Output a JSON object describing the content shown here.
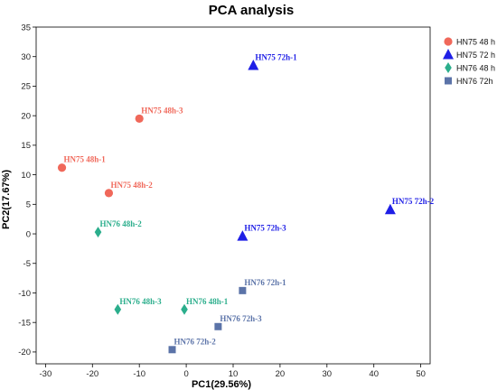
{
  "chart_data": {
    "type": "scatter",
    "title": "PCA analysis",
    "xlabel": "PC1(29.56%)",
    "ylabel": "PC2(17.67%)",
    "xlim": [
      -32,
      52
    ],
    "ylim": [
      -22,
      35
    ],
    "xticks": [
      -30,
      -20,
      -10,
      0,
      10,
      20,
      30,
      40,
      50
    ],
    "yticks": [
      -20,
      -15,
      -10,
      -5,
      0,
      5,
      10,
      15,
      20,
      25,
      30,
      35
    ],
    "grid": false,
    "legend_position": "top-right",
    "series": [
      {
        "name": "HN75 48 h",
        "color": "#F0685A",
        "marker": "circle",
        "points": [
          {
            "x": -26.5,
            "y": 11.2,
            "label": "HN75 48h-1"
          },
          {
            "x": -16.5,
            "y": 6.9,
            "label": "HN75 48h-2"
          },
          {
            "x": -10.0,
            "y": 19.5,
            "label": "HN75 48h-3"
          }
        ]
      },
      {
        "name": "HN75 72 h",
        "color": "#1F1FE6",
        "marker": "triangle",
        "points": [
          {
            "x": 14.3,
            "y": 28.5,
            "label": "HN75 72h-1"
          },
          {
            "x": 43.5,
            "y": 4.1,
            "label": "HN75 72h-2"
          },
          {
            "x": 12.0,
            "y": -0.4,
            "label": "HN75 72h-3"
          }
        ]
      },
      {
        "name": "HN76 48 h",
        "color": "#2BAE8C",
        "marker": "diamond",
        "points": [
          {
            "x": -0.4,
            "y": -12.8,
            "label": "HN76 48h-1"
          },
          {
            "x": -18.8,
            "y": 0.3,
            "label": "HN76 48h-2"
          },
          {
            "x": -14.6,
            "y": -12.8,
            "label": "HN76 48h-3"
          }
        ]
      },
      {
        "name": "HN76 72h",
        "color": "#5B73A8",
        "marker": "square",
        "points": [
          {
            "x": 12.0,
            "y": -9.6,
            "label": "HN76 72h-1"
          },
          {
            "x": -3.0,
            "y": -19.6,
            "label": "HN76 72h-2"
          },
          {
            "x": 6.8,
            "y": -15.7,
            "label": "HN76 72h-3"
          }
        ]
      }
    ]
  }
}
